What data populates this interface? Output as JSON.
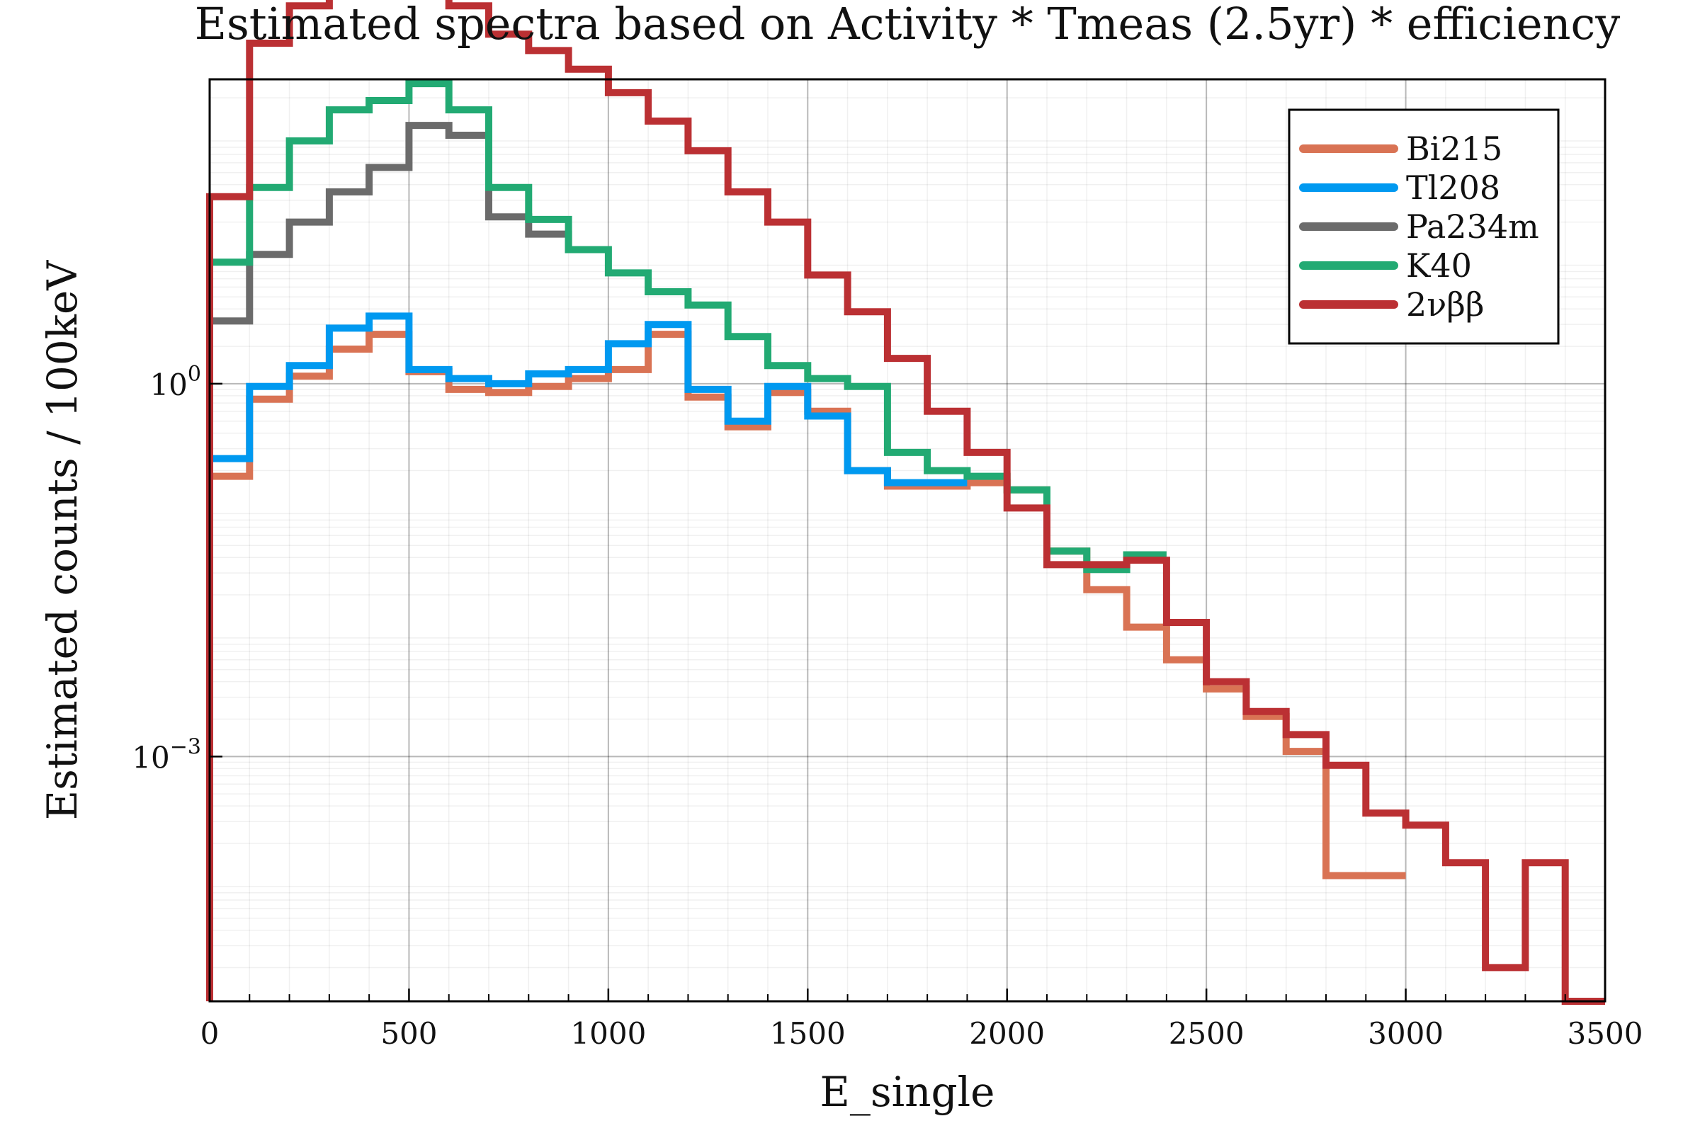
{
  "chart_data": {
    "type": "line",
    "style": "histogram-steps",
    "title": "Estimated spectra based on Activity * Tmeas (2.5yr) * efficiency",
    "xlabel": "E_single",
    "ylabel": "Estimated counts / 100keV",
    "xlim": [
      0,
      3500
    ],
    "ylim_log10": [
      -4.97,
      2.45
    ],
    "yscale": "log",
    "grid": true,
    "legend_position": "top-right",
    "x_ticks": [
      {
        "value": 0,
        "label": "0"
      },
      {
        "value": 500,
        "label": "500"
      },
      {
        "value": 1000,
        "label": "1000"
      },
      {
        "value": 1500,
        "label": "1500"
      },
      {
        "value": 2000,
        "label": "2000"
      },
      {
        "value": 2500,
        "label": "2500"
      },
      {
        "value": 3000,
        "label": "3000"
      },
      {
        "value": 3500,
        "label": "3500"
      }
    ],
    "y_ticks": [
      {
        "exponent": 0,
        "base": "10",
        "sup": "0"
      },
      {
        "exponent": -3,
        "base": "10",
        "sup": "−3"
      }
    ],
    "bin_width": 100,
    "series": [
      {
        "name": "Bi215",
        "color": "#d97354",
        "values": [
          0.18,
          0.75,
          1.15,
          1.9,
          2.5,
          1.25,
          0.9,
          0.85,
          0.95,
          1.1,
          1.3,
          2.5,
          0.78,
          0.45,
          0.85,
          0.6,
          0.2,
          0.15,
          0.15,
          0.16,
          0.14,
          0.045,
          0.022,
          0.011,
          0.006,
          0.0035,
          0.0021,
          0.0011,
          0.00011,
          0.00011
        ]
      },
      {
        "name": "Tl208",
        "color": "#0099f0",
        "values": [
          0.25,
          0.95,
          1.4,
          2.8,
          3.5,
          1.3,
          1.1,
          1.0,
          1.2,
          1.3,
          2.1,
          3.0,
          0.9,
          0.5,
          0.95,
          0.55,
          0.2,
          0.16,
          0.16
        ]
      },
      {
        "name": "Pa234m",
        "color": "#6b6b6b",
        "values": [
          3.2,
          11.0,
          20.0,
          35.0,
          55.0,
          120.0,
          100.0,
          22.0,
          16.0,
          12.0
        ]
      },
      {
        "name": "K40",
        "color": "#22aa73",
        "values": [
          9.5,
          38.0,
          90.0,
          160.0,
          190.0,
          260.0,
          160.0,
          38.0,
          21.0,
          12.0,
          7.8,
          5.5,
          4.3,
          2.4,
          1.4,
          1.1,
          0.95,
          0.28,
          0.2,
          0.18,
          0.14,
          0.045,
          0.032,
          0.042
        ]
      },
      {
        "name": "2νββ",
        "color": "#bb3033",
        "values": [
          32.0,
          550.0,
          1100.0,
          1450.0,
          1500.0,
          1450.0,
          1100.0,
          650.0,
          480.0,
          340.0,
          220.0,
          130.0,
          75.0,
          35.0,
          20.0,
          7.5,
          3.8,
          1.6,
          0.6,
          0.28,
          0.1,
          0.035,
          0.035,
          0.038,
          0.012,
          0.004,
          0.0023,
          0.0015,
          0.00085,
          0.00035,
          0.00028,
          0.00014,
          2e-05,
          0.00014,
          1e-06
        ]
      }
    ]
  }
}
